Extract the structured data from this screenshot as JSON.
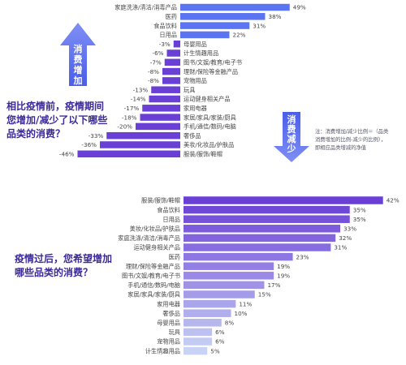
{
  "colors": {
    "increase_bar": "#5b74f2",
    "decrease_bar": "#6a3fd6",
    "bottom_bar_top": "#6a3fd6",
    "bottom_bar_bottom": "#c9d3f5",
    "arrow": "#5c6cf0",
    "question_text": "#3d2a9a",
    "label_text": "#444444"
  },
  "arrows": {
    "up_label": [
      "消",
      "费",
      "增",
      "加"
    ],
    "down_label": [
      "消",
      "费",
      "减",
      "少"
    ]
  },
  "questions": {
    "top_lines": [
      "相比疫情前，疫情期间",
      "您增加/减少了以下哪些",
      "品类的消费？"
    ],
    "bottom_lines": [
      "疫情过后，您希望增加",
      "哪些品类的消费？"
    ]
  },
  "note": {
    "lines": [
      "注：消费增加/减少比例＝（品类",
      "消费增加的比例-减少的比例），",
      "即相应品类增减的净值"
    ]
  },
  "chart_data": [
    {
      "type": "bar",
      "orientation": "horizontal-diverging",
      "categories": [
        "家庭洗涤/清洁/消毒产品",
        "医药",
        "食品饮料",
        "日用品",
        "母婴用品",
        "计生情趣用品",
        "图书/文娱/教育/电子书",
        "理财/保险等金融产品",
        "宠物用品",
        "玩具",
        "运动健身相关产品",
        "家用电器",
        "家居/家具/家装/厨具",
        "手机/通信/数码/电脑",
        "奢侈品",
        "美妆/化妆品/护肤品",
        "服装/服饰/鞋帽"
      ],
      "values": [
        49,
        38,
        31,
        22,
        -3,
        -6,
        -7,
        -8,
        -8,
        -13,
        -14,
        -17,
        -18,
        -20,
        -33,
        -36,
        -46
      ],
      "value_labels": [
        "49%",
        "38%",
        "31%",
        "22%",
        "-3%",
        "-6%",
        "-7%",
        "-8%",
        "-8%",
        "-13%",
        "-14%",
        "-17%",
        "-18%",
        "-20%",
        "-33%",
        "-36%",
        "-46%"
      ],
      "xlim": [
        -46,
        49
      ],
      "grid": false
    },
    {
      "type": "bar",
      "orientation": "horizontal",
      "categories": [
        "服装/服饰/鞋帽",
        "食品饮料",
        "日用品",
        "美妆/化妆品/护肤品",
        "家庭洗涤/清洁/消毒产品",
        "运动健身相关产品",
        "医药",
        "理财/保险等金融产品",
        "图书/文娱/教育/电子书",
        "手机/通信/数码/电脑",
        "家居/家具/家装/厨具",
        "家用电器",
        "奢侈品",
        "母婴用品",
        "玩具",
        "宠物用品",
        "计生情趣用品"
      ],
      "values": [
        42,
        35,
        35,
        33,
        32,
        31,
        23,
        19,
        19,
        17,
        15,
        11,
        10,
        8,
        6,
        6,
        5
      ],
      "value_labels": [
        "42%",
        "35%",
        "35%",
        "33%",
        "32%",
        "31%",
        "23%",
        "19%",
        "19%",
        "17%",
        "15%",
        "11%",
        "10%",
        "8%",
        "6%",
        "6%",
        "5%"
      ],
      "xlim": [
        0,
        42
      ],
      "grid": false
    }
  ]
}
